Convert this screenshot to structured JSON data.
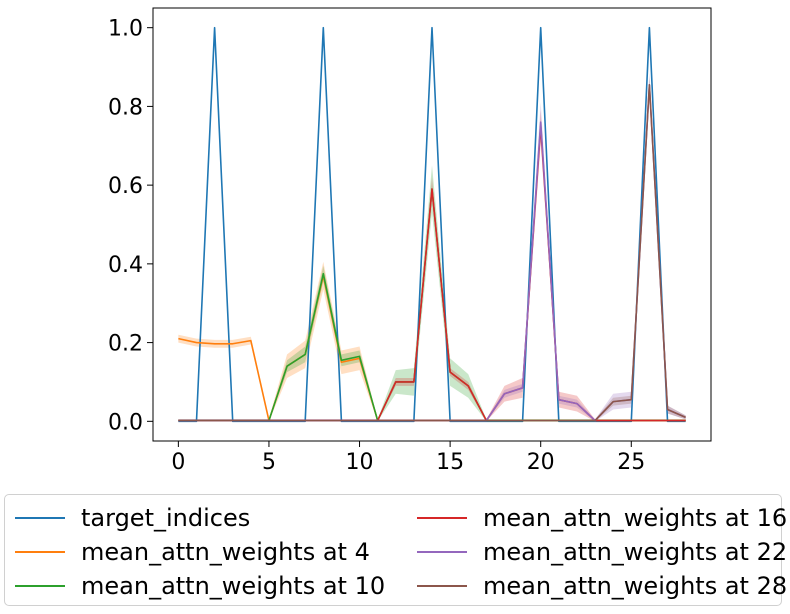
{
  "chart_data": {
    "type": "line",
    "title": "",
    "xlabel": "",
    "ylabel": "",
    "xlim": [
      -1.4,
      29.4
    ],
    "ylim": [
      -0.05,
      1.05
    ],
    "xticks": [
      0,
      5,
      10,
      15,
      20,
      25
    ],
    "yticks": [
      0.0,
      0.2,
      0.4,
      0.6,
      0.8,
      1.0
    ],
    "xtick_labels": [
      "0",
      "5",
      "10",
      "15",
      "20",
      "25"
    ],
    "ytick_labels": [
      "0.0",
      "0.2",
      "0.4",
      "0.6",
      "0.8",
      "1.0"
    ],
    "grid": false,
    "legend_position": "below",
    "series": [
      {
        "name": "target_indices",
        "color": "#1f77b4",
        "x": [
          0,
          1,
          2,
          3,
          4,
          5,
          6,
          7,
          8,
          9,
          10,
          11,
          12,
          13,
          14,
          15,
          16,
          17,
          18,
          19,
          20,
          21,
          22,
          23,
          24,
          25,
          26,
          27,
          28
        ],
        "y": [
          0,
          0,
          1,
          0,
          0,
          0,
          0,
          0,
          1,
          0,
          0,
          0,
          0,
          0,
          1,
          0,
          0,
          0,
          0,
          0,
          1,
          0,
          0,
          0,
          0,
          0,
          1,
          0,
          0
        ]
      },
      {
        "name": "mean_attn_weights at 4",
        "color": "#ff7f0e",
        "x": [
          0,
          1,
          2,
          3,
          4,
          5,
          6,
          7,
          8,
          9,
          10,
          11,
          12,
          13,
          14,
          15,
          16,
          17,
          18,
          19,
          20,
          21,
          22,
          23,
          24,
          25,
          26,
          27,
          28
        ],
        "y": [
          0.21,
          0.2,
          0.197,
          0.197,
          0.205,
          0.002,
          0.14,
          0.17,
          0.37,
          0.15,
          0.16,
          0.002,
          0.002,
          0.002,
          0.002,
          0.002,
          0.002,
          0.002,
          0.002,
          0.002,
          0.002,
          0.002,
          0.002,
          0.002,
          0.002,
          0.002,
          0.002,
          0.002,
          0.002
        ],
        "band": [
          0.01,
          0.01,
          0.01,
          0.01,
          0.01,
          0.005,
          0.03,
          0.035,
          0.035,
          0.03,
          0.03,
          0.003,
          0.003,
          0.003,
          0.003,
          0.003,
          0.003,
          0.003,
          0.003,
          0.003,
          0.003,
          0.003,
          0.003,
          0.003,
          0.003,
          0.003,
          0.003,
          0.003,
          0.003
        ]
      },
      {
        "name": "mean_attn_weights at 10",
        "color": "#2ca02c",
        "x": [
          0,
          1,
          2,
          3,
          4,
          5,
          6,
          7,
          8,
          9,
          10,
          11,
          12,
          13,
          14,
          15,
          16,
          17,
          18,
          19,
          20,
          21,
          22,
          23,
          24,
          25,
          26,
          27,
          28
        ],
        "y": [
          0.002,
          0.002,
          0.002,
          0.002,
          0.002,
          0.002,
          0.14,
          0.17,
          0.375,
          0.155,
          0.165,
          0.002,
          0.1,
          0.1,
          0.59,
          0.125,
          0.09,
          0.002,
          0.002,
          0.002,
          0.002,
          0.002,
          0.002,
          0.002,
          0.002,
          0.002,
          0.002,
          0.002,
          0.002
        ],
        "band": [
          0.003,
          0.003,
          0.003,
          0.003,
          0.003,
          0.003,
          0.015,
          0.02,
          0.02,
          0.015,
          0.015,
          0.003,
          0.03,
          0.035,
          0.06,
          0.035,
          0.03,
          0.003,
          0.003,
          0.003,
          0.003,
          0.003,
          0.003,
          0.003,
          0.003,
          0.003,
          0.003,
          0.003,
          0.003
        ]
      },
      {
        "name": "mean_attn_weights at 16",
        "color": "#d62728",
        "x": [
          0,
          1,
          2,
          3,
          4,
          5,
          6,
          7,
          8,
          9,
          10,
          11,
          12,
          13,
          14,
          15,
          16,
          17,
          18,
          19,
          20,
          21,
          22,
          23,
          24,
          25,
          26,
          27,
          28
        ],
        "y": [
          0.002,
          0.002,
          0.002,
          0.002,
          0.002,
          0.002,
          0.002,
          0.002,
          0.002,
          0.002,
          0.002,
          0.002,
          0.1,
          0.1,
          0.59,
          0.125,
          0.09,
          0.002,
          0.07,
          0.085,
          0.75,
          0.055,
          0.045,
          0.002,
          0.002,
          0.002,
          0.002,
          0.002,
          0.002
        ],
        "band": [
          0.003,
          0.003,
          0.003,
          0.003,
          0.003,
          0.003,
          0.003,
          0.003,
          0.003,
          0.003,
          0.003,
          0.003,
          0.01,
          0.01,
          0.03,
          0.01,
          0.01,
          0.003,
          0.02,
          0.025,
          0.04,
          0.02,
          0.02,
          0.003,
          0.003,
          0.003,
          0.003,
          0.003,
          0.003
        ]
      },
      {
        "name": "mean_attn_weights at 22",
        "color": "#9467bd",
        "x": [
          0,
          1,
          2,
          3,
          4,
          5,
          6,
          7,
          8,
          9,
          10,
          11,
          12,
          13,
          14,
          15,
          16,
          17,
          18,
          19,
          20,
          21,
          22,
          23,
          24,
          25,
          26,
          27,
          28
        ],
        "y": [
          0.002,
          0.002,
          0.002,
          0.002,
          0.002,
          0.002,
          0.002,
          0.002,
          0.002,
          0.002,
          0.002,
          0.002,
          0.002,
          0.002,
          0.002,
          0.002,
          0.002,
          0.002,
          0.07,
          0.085,
          0.76,
          0.055,
          0.045,
          0.002,
          0.05,
          0.055,
          0.855,
          0.03,
          0.01
        ],
        "band": [
          0.003,
          0.003,
          0.003,
          0.003,
          0.003,
          0.003,
          0.003,
          0.003,
          0.003,
          0.003,
          0.003,
          0.003,
          0.003,
          0.003,
          0.003,
          0.003,
          0.003,
          0.003,
          0.01,
          0.01,
          0.05,
          0.01,
          0.01,
          0.003,
          0.02,
          0.02,
          0.03,
          0.01,
          0.005
        ]
      },
      {
        "name": "mean_attn_weights at 28",
        "color": "#8c564b",
        "x": [
          0,
          1,
          2,
          3,
          4,
          5,
          6,
          7,
          8,
          9,
          10,
          11,
          12,
          13,
          14,
          15,
          16,
          17,
          18,
          19,
          20,
          21,
          22,
          23,
          24,
          25,
          26,
          27,
          28
        ],
        "y": [
          0.002,
          0.002,
          0.002,
          0.002,
          0.002,
          0.002,
          0.002,
          0.002,
          0.002,
          0.002,
          0.002,
          0.002,
          0.002,
          0.002,
          0.002,
          0.002,
          0.002,
          0.002,
          0.002,
          0.002,
          0.002,
          0.002,
          0.002,
          0.002,
          0.05,
          0.055,
          0.855,
          0.03,
          0.01
        ],
        "band": [
          0.003,
          0.003,
          0.003,
          0.003,
          0.003,
          0.003,
          0.003,
          0.003,
          0.003,
          0.003,
          0.003,
          0.003,
          0.003,
          0.003,
          0.003,
          0.003,
          0.003,
          0.003,
          0.003,
          0.003,
          0.003,
          0.003,
          0.003,
          0.003,
          0.01,
          0.01,
          0.02,
          0.01,
          0.005
        ]
      }
    ]
  }
}
